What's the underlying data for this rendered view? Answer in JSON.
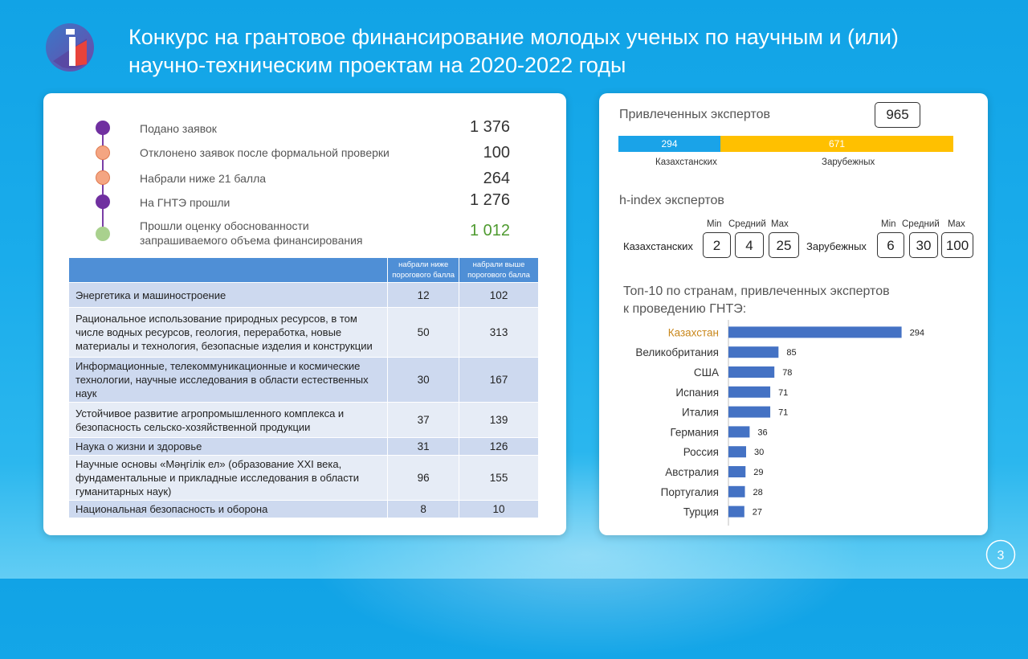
{
  "slide": {
    "title_line1": "Конкурс на грантовое финансирование молодых ученых по научным и (или)",
    "title_line2": "научно-техническим проектам на 2020-2022 годы",
    "page_number": "3"
  },
  "stats": [
    {
      "label": "Подано заявок",
      "value": "1 376",
      "dot_color": "#7030a0",
      "value_color": "#333333"
    },
    {
      "label": "Отклонено заявок после формальной проверки",
      "value": "100",
      "dot_color": "#f4a582",
      "value_color": "#333333"
    },
    {
      "label": "Набрали ниже 21 балла",
      "value": "264",
      "dot_color": "#f4a582",
      "value_color": "#333333"
    },
    {
      "label": "На ГНТЭ прошли",
      "value": "1 276",
      "dot_color": "#7030a0",
      "value_color": "#333333"
    },
    {
      "label_line1": "Прошли оценку обоснованности",
      "label_line2": "запрашиваемого объема финансирования",
      "value": "1 012",
      "dot_color": "#a9d18e",
      "value_color": "#4e9a2f"
    }
  ],
  "table": {
    "headers": [
      "",
      "набрали ниже порогового балла",
      "набрали выше порогового балла"
    ],
    "rows": [
      {
        "category": "Энергетика и машиностроение",
        "below": "12",
        "above": "102"
      },
      {
        "category": "Рациональное использование природных ресурсов, в том числе водных ресурсов, геология, переработка, новые материалы и технология, безопасные изделия и конструкции",
        "below": "50",
        "above": "313"
      },
      {
        "category": "Информационные, телекоммуникационные и космические технологии, научные исследования в области естественных наук",
        "below": "30",
        "above": "167"
      },
      {
        "category": "Устойчивое развитие агропромышленного комплекса и безопасность сельско-хозяйственной продукции",
        "below": "37",
        "above": "139"
      },
      {
        "category": "Наука о жизни и здоровье",
        "below": "31",
        "above": "126"
      },
      {
        "category": "Научные основы «Мәңгілік ел» (образование XXI века, фундаментальные и прикладные исследования в области гуманитарных наук)",
        "below": "96",
        "above": "155"
      },
      {
        "category": "Национальная безопасность и оборона",
        "below": "8",
        "above": "10"
      }
    ]
  },
  "experts": {
    "title": "Привлеченных экспертов",
    "total": "965",
    "kazakh": {
      "value": 294,
      "label": "Казахстанских",
      "color": "#1aa3e8"
    },
    "foreign": {
      "value": 671,
      "label": "Зарубежных",
      "color": "#ffc000"
    }
  },
  "hindex": {
    "title": "h-index экспертов",
    "columns": {
      "min": "Min",
      "avg": "Средний",
      "max": "Max"
    },
    "kazakh": {
      "label": "Казахстанских",
      "min": "2",
      "avg": "4",
      "max": "25"
    },
    "foreign": {
      "label": "Зарубежных",
      "min": "6",
      "avg": "30",
      "max": "100"
    }
  },
  "top_countries": {
    "title_line1": "Топ-10 по странам, привлеченных экспертов",
    "title_line2": "к проведению ГНТЭ:"
  },
  "chart_data": {
    "type": "bar",
    "orientation": "horizontal",
    "categories": [
      "Казахстан",
      "Великобритания",
      "США",
      "Испания",
      "Италия",
      "Германия",
      "Россия",
      "Австралия",
      "Португалия",
      "Турция"
    ],
    "values": [
      294,
      85,
      78,
      71,
      71,
      36,
      30,
      29,
      28,
      27
    ],
    "bar_color": "#4472c4",
    "highlight_category": "Казахстан",
    "highlight_color": "#c9881d",
    "label_color": "#333333",
    "xlim": [
      0,
      300
    ],
    "grid": false,
    "legend": false
  }
}
